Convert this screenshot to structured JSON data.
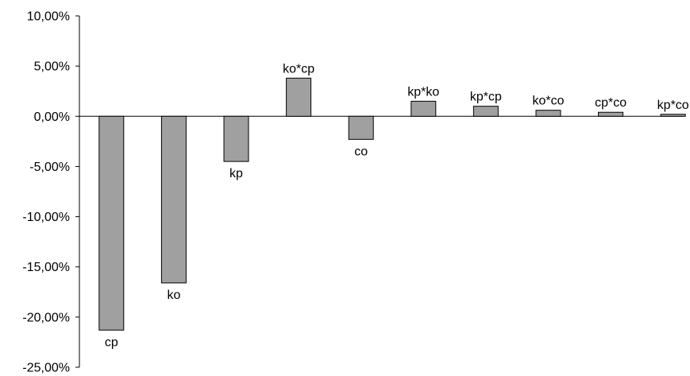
{
  "chart_data": {
    "type": "bar",
    "title": "",
    "xlabel": "",
    "ylabel": "",
    "ylim": [
      -0.25,
      0.1
    ],
    "ytick_step": 0.05,
    "yticks": [
      "10,00%",
      "5,00%",
      "0,00%",
      "-5,00%",
      "-10,00%",
      "-15,00%",
      "-20,00%",
      "-25,00%"
    ],
    "grid": false,
    "legend": "none",
    "bar_color": "#a0a0a0",
    "categories": [
      "cp",
      "ko",
      "kp",
      "ko*cp",
      "co",
      "kp*ko",
      "kp*cp",
      "ko*co",
      "cp*co",
      "kp*co"
    ],
    "values": [
      -0.213,
      -0.166,
      -0.045,
      0.038,
      -0.023,
      0.015,
      0.01,
      0.006,
      0.004,
      0.002
    ]
  }
}
